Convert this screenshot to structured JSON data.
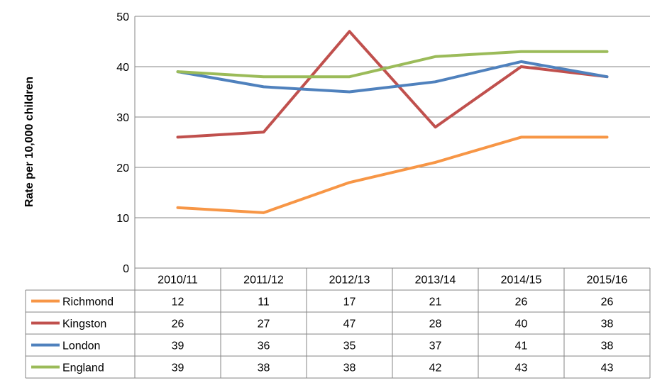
{
  "chart_data": {
    "type": "line",
    "title": "",
    "xlabel": "",
    "ylabel": "Rate per 10,000 children",
    "ylim": [
      0,
      50
    ],
    "yticks": [
      0,
      10,
      20,
      30,
      40,
      50
    ],
    "grid": true,
    "legend": "data table below plot",
    "categories": [
      "2010/11",
      "2011/12",
      "2012/13",
      "2013/14",
      "2014/15",
      "2015/16"
    ],
    "series": [
      {
        "name": "Richmond",
        "color": "#F79646",
        "values": [
          12,
          11,
          17,
          21,
          26,
          26
        ],
        "table_values": [
          "12",
          "11",
          "17",
          "21",
          "26",
          "26"
        ]
      },
      {
        "name": "Kingston",
        "color": "#C0504D",
        "values": [
          26,
          27,
          47,
          28,
          40,
          38
        ],
        "table_values": [
          "26",
          "27",
          "47",
          "28",
          "40",
          "38"
        ]
      },
      {
        "name": "London",
        "color": "#4F81BD",
        "values": [
          39,
          36,
          35,
          37,
          41,
          38
        ],
        "table_values": [
          "39",
          "36",
          "35",
          "37",
          "41",
          "38"
        ]
      },
      {
        "name": "England",
        "color": "#9BBB59",
        "values": [
          39,
          38,
          38,
          42,
          43,
          43
        ],
        "table_values": [
          "39",
          "38",
          "38",
          "42",
          "43",
          "43"
        ]
      }
    ]
  }
}
